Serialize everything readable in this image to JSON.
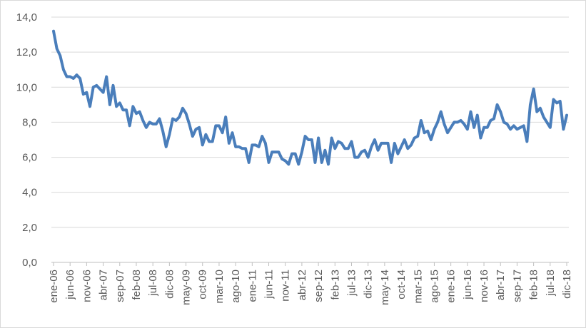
{
  "chart_data": {
    "type": "line",
    "title": "",
    "xlabel": "",
    "ylabel": "",
    "ylim": [
      0,
      14
    ],
    "yticks": [
      "0,0",
      "2,0",
      "4,0",
      "6,0",
      "8,0",
      "10,0",
      "12,0",
      "14,0"
    ],
    "xtick_labels": [
      "ene-06",
      "jun-06",
      "nov-06",
      "abr-07",
      "sep-07",
      "feb-08",
      "jul-08",
      "dic-08",
      "may-09",
      "oct-09",
      "mar-10",
      "ago-10",
      "ene-11",
      "jun-11",
      "nov-11",
      "abr-12",
      "sep-12",
      "feb-13",
      "jul-13",
      "dic-13",
      "may-14",
      "oct-14",
      "mar-15",
      "ago-15",
      "ene-16",
      "jun-16",
      "nov-16",
      "abr-17",
      "sep-17",
      "feb-18",
      "jul-18",
      "dic-18"
    ],
    "x_start": "ene-06",
    "x_end": "dic-18",
    "grid": true,
    "legend": "none",
    "line_color": "#4a7ebb",
    "series": [
      {
        "values": [
          13.2,
          12.2,
          11.8,
          11.0,
          10.6,
          10.6,
          10.5,
          10.7,
          10.5,
          9.6,
          9.7,
          8.9,
          10.0,
          10.1,
          9.9,
          9.7,
          10.6,
          9.0,
          10.1,
          8.9,
          9.1,
          8.7,
          8.7,
          7.8,
          8.9,
          8.5,
          8.6,
          8.1,
          7.7,
          8.0,
          7.9,
          7.9,
          8.2,
          7.5,
          6.6,
          7.3,
          8.2,
          8.1,
          8.3,
          8.8,
          8.5,
          7.9,
          7.2,
          7.6,
          7.7,
          6.7,
          7.3,
          6.9,
          6.9,
          7.8,
          7.8,
          7.4,
          8.3,
          6.8,
          7.4,
          6.6,
          6.6,
          6.5,
          6.5,
          5.7,
          6.7,
          6.7,
          6.6,
          7.2,
          6.8,
          5.7,
          6.3,
          6.3,
          6.3,
          5.9,
          5.8,
          5.6,
          6.2,
          6.2,
          5.6,
          6.3,
          7.2,
          7.0,
          7.0,
          5.7,
          7.1,
          5.7,
          6.4,
          5.6,
          7.1,
          6.5,
          6.9,
          6.8,
          6.5,
          6.5,
          6.9,
          6.0,
          6.0,
          6.3,
          6.4,
          6.0,
          6.6,
          7.0,
          6.4,
          6.8,
          6.8,
          6.8,
          5.7,
          6.8,
          6.2,
          6.6,
          7.0,
          6.5,
          6.7,
          7.1,
          7.2,
          8.1,
          7.4,
          7.5,
          7.0,
          7.6,
          8.0,
          8.6,
          7.9,
          7.4,
          7.7,
          8.0,
          8.0,
          8.1,
          7.9,
          7.6,
          8.6,
          7.7,
          8.4,
          7.1,
          7.7,
          7.7,
          8.1,
          8.2,
          9.0,
          8.6,
          8.0,
          7.9,
          7.6,
          7.8,
          7.6,
          7.7,
          7.8,
          6.9,
          9.0,
          9.9,
          8.6,
          8.8,
          8.3,
          8.0,
          7.7,
          9.3,
          9.1,
          9.2,
          7.6,
          8.4
        ]
      }
    ]
  }
}
